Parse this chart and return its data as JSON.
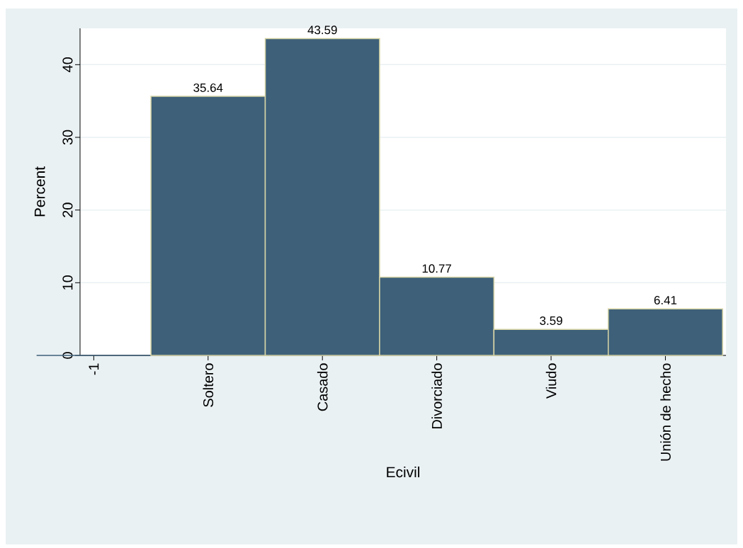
{
  "chart_data": {
    "type": "bar",
    "xlabel": "Ecivil",
    "ylabel": "Percent",
    "categories": [
      "-1",
      "Soltero",
      "Casado",
      "Divorciado",
      "Viudo",
      "Unión de hecho"
    ],
    "values": [
      0,
      35.64,
      43.59,
      10.77,
      3.59,
      6.41
    ],
    "value_labels": [
      null,
      "35.64",
      "43.59",
      "10.77",
      "3.59",
      "6.41"
    ],
    "color": "#3e6079",
    "ylim": [
      0,
      45
    ],
    "yticks": [
      0,
      10,
      20,
      30,
      40
    ],
    "grid": "y"
  }
}
